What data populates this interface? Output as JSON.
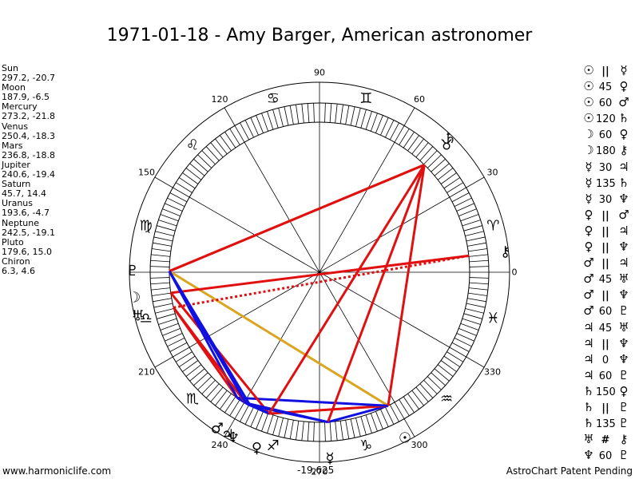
{
  "chart_data": {
    "type": "astrological-wheel",
    "title": "1971-01-18 - Amy Barger, American astronomer",
    "ascendant": 180,
    "degree_labels": [
      {
        "deg": 0,
        "label": "0"
      },
      {
        "deg": 30,
        "label": "30"
      },
      {
        "deg": 60,
        "label": "60"
      },
      {
        "deg": 90,
        "label": "90"
      },
      {
        "deg": 120,
        "label": "120"
      },
      {
        "deg": 150,
        "label": "150"
      },
      {
        "deg": 210,
        "label": "210"
      },
      {
        "deg": 240,
        "label": "240"
      },
      {
        "deg": 270,
        "label": "270"
      },
      {
        "deg": 300,
        "label": "300"
      },
      {
        "deg": 330,
        "label": "330"
      }
    ],
    "signs": [
      {
        "name": "aries-glyph",
        "glyph": "♈",
        "deg": 15
      },
      {
        "name": "taurus-glyph",
        "glyph": "♉",
        "deg": 45
      },
      {
        "name": "gemini-glyph",
        "glyph": "♊",
        "deg": 75
      },
      {
        "name": "cancer-glyph",
        "glyph": "♋",
        "deg": 105
      },
      {
        "name": "leo-glyph",
        "glyph": "♌",
        "deg": 135
      },
      {
        "name": "virgo-glyph",
        "glyph": "♍",
        "deg": 165
      },
      {
        "name": "libra-glyph",
        "glyph": "♎",
        "deg": 195
      },
      {
        "name": "scorpio-glyph",
        "glyph": "♏",
        "deg": 225
      },
      {
        "name": "sagittarius-glyph",
        "glyph": "♐",
        "deg": 255
      },
      {
        "name": "capricorn-glyph",
        "glyph": "♑",
        "deg": 285
      },
      {
        "name": "aquarius-glyph",
        "glyph": "♒",
        "deg": 315
      },
      {
        "name": "pisces-glyph",
        "glyph": "♓",
        "deg": 345
      }
    ],
    "planets": [
      {
        "name": "Sun",
        "glyph": "☉",
        "lon": 297.2,
        "lat": -20.7
      },
      {
        "name": "Moon",
        "glyph": "☽",
        "lon": 187.9,
        "lat": -6.5
      },
      {
        "name": "Mercury",
        "glyph": "☿",
        "lon": 273.2,
        "lat": -21.8
      },
      {
        "name": "Venus",
        "glyph": "♀",
        "lon": 250.4,
        "lat": -18.3
      },
      {
        "name": "Mars",
        "glyph": "♂",
        "lon": 236.8,
        "lat": -18.8
      },
      {
        "name": "Jupiter",
        "glyph": "♃",
        "lon": 240.6,
        "lat": -19.4
      },
      {
        "name": "Saturn",
        "glyph": "♄",
        "lon": 45.7,
        "lat": 14.4
      },
      {
        "name": "Uranus",
        "glyph": "♅",
        "lon": 193.6,
        "lat": -4.7
      },
      {
        "name": "Neptune",
        "glyph": "♆",
        "lon": 242.5,
        "lat": -19.1
      },
      {
        "name": "Pluto",
        "glyph": "♇",
        "lon": 179.6,
        "lat": 15.0
      },
      {
        "name": "Chiron",
        "glyph": "⚷",
        "lon": 6.3,
        "lat": 4.6
      }
    ],
    "aspects": [
      {
        "p1": "Sun",
        "p1g": "☉",
        "aspect": "||",
        "p2": "Mercury",
        "p2g": "☿",
        "color": "#1010e0",
        "style": "solid"
      },
      {
        "p1": "Sun",
        "p1g": "☉",
        "aspect": "45",
        "p2": "Venus",
        "p2g": "♀",
        "color": "#e01010",
        "style": "solid"
      },
      {
        "p1": "Sun",
        "p1g": "☉",
        "aspect": "60",
        "p2": "Mars",
        "p2g": "♂",
        "color": "#1010e0",
        "style": "solid"
      },
      {
        "p1": "Sun",
        "p1g": "☉",
        "aspect": "120",
        "p2": "Saturn",
        "p2g": "♄",
        "color": "#e01010",
        "style": "solid"
      },
      {
        "p1": "Moon",
        "p1g": "☽",
        "aspect": "60",
        "p2": "Venus",
        "p2g": "♀",
        "color": "#e01010",
        "style": "solid"
      },
      {
        "p1": "Moon",
        "p1g": "☽",
        "aspect": "180",
        "p2": "Chiron",
        "p2g": "⚷",
        "color": "#e01010",
        "style": "solid"
      },
      {
        "p1": "Mercury",
        "p1g": "☿",
        "aspect": "30",
        "p2": "Jupiter",
        "p2g": "♃",
        "color": "#1010e0",
        "style": "solid"
      },
      {
        "p1": "Mercury",
        "p1g": "☿",
        "aspect": "135",
        "p2": "Saturn",
        "p2g": "♄",
        "color": "#e01010",
        "style": "solid"
      },
      {
        "p1": "Mercury",
        "p1g": "☿",
        "aspect": "30",
        "p2": "Neptune",
        "p2g": "♆",
        "color": "#1010e0",
        "style": "solid"
      },
      {
        "p1": "Venus",
        "p1g": "♀",
        "aspect": "||",
        "p2": "Mars",
        "p2g": "♂",
        "color": "#1010e0",
        "style": "solid"
      },
      {
        "p1": "Venus",
        "p1g": "♀",
        "aspect": "||",
        "p2": "Jupiter",
        "p2g": "♃",
        "color": "#1010e0",
        "style": "solid"
      },
      {
        "p1": "Venus",
        "p1g": "♀",
        "aspect": "||",
        "p2": "Neptune",
        "p2g": "♆",
        "color": "#1010e0",
        "style": "solid"
      },
      {
        "p1": "Mars",
        "p1g": "♂",
        "aspect": "||",
        "p2": "Jupiter",
        "p2g": "♃",
        "color": "#1010e0",
        "style": "solid"
      },
      {
        "p1": "Mars",
        "p1g": "♂",
        "aspect": "45",
        "p2": "Uranus",
        "p2g": "♅",
        "color": "#e01010",
        "style": "solid"
      },
      {
        "p1": "Mars",
        "p1g": "♂",
        "aspect": "||",
        "p2": "Neptune",
        "p2g": "♆",
        "color": "#1010e0",
        "style": "solid"
      },
      {
        "p1": "Mars",
        "p1g": "♂",
        "aspect": "60",
        "p2": "Pluto",
        "p2g": "♇",
        "color": "#1010e0",
        "style": "solid"
      },
      {
        "p1": "Jupiter",
        "p1g": "♃",
        "aspect": "45",
        "p2": "Uranus",
        "p2g": "♅",
        "color": "#e01010",
        "style": "solid"
      },
      {
        "p1": "Jupiter",
        "p1g": "♃",
        "aspect": "||",
        "p2": "Neptune",
        "p2g": "♆",
        "color": "#1010e0",
        "style": "solid"
      },
      {
        "p1": "Jupiter",
        "p1g": "♃",
        "aspect": "0",
        "p2": "Neptune",
        "p2g": "♆",
        "color": "#1010e0",
        "style": "solid"
      },
      {
        "p1": "Jupiter",
        "p1g": "♃",
        "aspect": "60",
        "p2": "Pluto",
        "p2g": "♇",
        "color": "#1010e0",
        "style": "solid"
      },
      {
        "p1": "Saturn",
        "p1g": "♄",
        "aspect": "150",
        "p2": "Venus",
        "p2g": "♀",
        "color": "#e01010",
        "style": "solid"
      },
      {
        "p1": "Saturn",
        "p1g": "♄",
        "aspect": "||",
        "p2": "Pluto",
        "p2g": "♇",
        "color": "#daa520",
        "style": "dotted"
      },
      {
        "p1": "Saturn",
        "p1g": "♄",
        "aspect": "135",
        "p2": "Pluto",
        "p2g": "♇",
        "color": "#e01010",
        "style": "solid"
      },
      {
        "p1": "Uranus",
        "p1g": "♅",
        "aspect": "#",
        "p2": "Chiron",
        "p2g": "⚷",
        "color": "#e01010",
        "style": "dotted"
      },
      {
        "p1": "Neptune",
        "p1g": "♆",
        "aspect": "60",
        "p2": "Pluto",
        "p2g": "♇",
        "color": "#1010e0",
        "style": "solid"
      }
    ],
    "extra_lines": [
      {
        "p1": "Pluto",
        "p2": "Sun",
        "color": "#daa520",
        "style": "solid"
      },
      {
        "p1": "Sun",
        "p2": "Venus",
        "color": "#daa520",
        "style": "dotted"
      },
      {
        "p1": "Pluto",
        "p2": "Saturn",
        "color": "#e01010",
        "style": "solid"
      }
    ]
  },
  "footer": {
    "left": "www.harmoniclife.com",
    "center": "-19,625",
    "right": "AstroChart Patent Pending"
  }
}
